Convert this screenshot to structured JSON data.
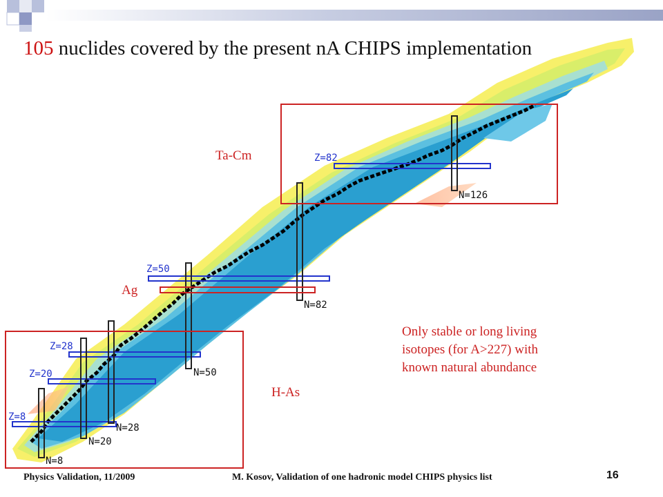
{
  "slide": {
    "title_number": "105",
    "title_rest": " nuclides covered by the present nA CHIPS implementation",
    "footer_left": "Physics Validation, 11/2009",
    "footer_center": "M. Kosov,  Validation of one hadronic model CHIPS physics list",
    "page_number": "16"
  },
  "regions": {
    "ta_cm": "Ta-Cm",
    "ag": "Ag",
    "h_as": "H-As"
  },
  "note": {
    "line1": "Only stable or long living",
    "line2": "isotopes (for A>227) with",
    "line3": "known natural abundance"
  },
  "magic_labels": {
    "z8": "Z=8",
    "z20": "Z=20",
    "z28": "Z=28",
    "z50": "Z=50",
    "z82": "Z=82",
    "n8": "N=8",
    "n20": "N=20",
    "n28": "N=28",
    "n50": "N=50",
    "n82": "N=82",
    "n126": "N=126"
  },
  "colors": {
    "accent_red": "#cc2222",
    "magic_z_blue": "#2233cc",
    "stable_black": "#000000"
  }
}
